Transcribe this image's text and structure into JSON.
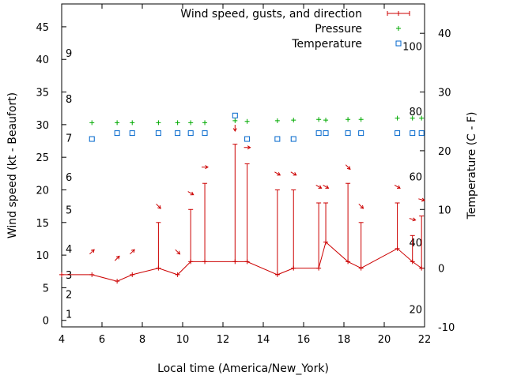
{
  "chart_data": {
    "type": "line",
    "xlabel": "Local time (America/New_York)",
    "ylabel": "Wind speed (kt - Beaufort)",
    "y2label": "Temperature (C - F)",
    "xlim": [
      4,
      22
    ],
    "ylim": [
      -1,
      48.5
    ],
    "y2lim": [
      -10,
      45
    ],
    "x_ticks": [
      4,
      6,
      8,
      10,
      12,
      14,
      16,
      18,
      20,
      22
    ],
    "y_ticks": [
      0,
      5,
      10,
      15,
      20,
      25,
      30,
      35,
      40,
      45
    ],
    "y2_ticks": [
      -10,
      0,
      10,
      20,
      30,
      40
    ],
    "beaufort_labels": [
      {
        "label": "1",
        "y": 1
      },
      {
        "label": "2",
        "y": 4
      },
      {
        "label": "3",
        "y": 7
      },
      {
        "label": "4",
        "y": 11
      },
      {
        "label": "5",
        "y": 17
      },
      {
        "label": "6",
        "y": 22
      },
      {
        "label": "7",
        "y": 28
      },
      {
        "label": "8",
        "y": 34
      },
      {
        "label": "9",
        "y": 41
      }
    ],
    "fahrenheit_labels": [
      {
        "label": "20",
        "y2": -7
      },
      {
        "label": "40",
        "y2": 4.4
      },
      {
        "label": "60",
        "y2": 15.6
      },
      {
        "label": "80",
        "y2": 26.7
      },
      {
        "label": "100",
        "y2": 37.8
      }
    ],
    "legend_position": "top-right",
    "legend": [
      "Wind speed, gusts, and direction",
      "Pressure",
      "Temperature"
    ],
    "colors": {
      "wind": "#cc0000",
      "pressure": "#00aa00",
      "temperature": "#0066cc"
    },
    "series": [
      {
        "name": "Wind speed, gusts, and direction",
        "x": [
          4,
          5.5,
          6.75,
          7.5,
          8.8,
          9.75,
          10.4,
          11.1,
          12.6,
          13.2,
          14.7,
          15.5,
          16.75,
          17.1,
          18.2,
          18.85,
          20.65,
          21.4,
          21.85
        ],
        "values": [
          7,
          7,
          6,
          7,
          8,
          7,
          9,
          9,
          9,
          9,
          7,
          8,
          8,
          12,
          9,
          8,
          11,
          9,
          8
        ],
        "gusts": [
          null,
          null,
          null,
          null,
          15,
          null,
          17,
          21,
          27,
          24,
          20,
          20,
          18,
          18,
          21,
          15,
          18,
          13,
          16
        ],
        "direction_deg": [
          null,
          225,
          225,
          225,
          315,
          315,
          300,
          270,
          0,
          270,
          300,
          300,
          300,
          300,
          315,
          315,
          300,
          285,
          285
        ]
      },
      {
        "name": "Pressure",
        "x": [
          5.5,
          6.75,
          7.5,
          8.8,
          9.75,
          10.4,
          11.1,
          12.6,
          13.2,
          14.7,
          15.5,
          16.75,
          17.1,
          18.2,
          18.85,
          20.65,
          21.4,
          21.85
        ],
        "values": [
          30.3,
          30.3,
          30.3,
          30.3,
          30.3,
          30.3,
          30.3,
          30.6,
          30.5,
          30.6,
          30.7,
          30.8,
          30.7,
          30.8,
          30.8,
          31,
          31,
          31
        ]
      },
      {
        "name": "Temperature",
        "x": [
          5.5,
          6.75,
          7.5,
          8.8,
          9.75,
          10.4,
          11.1,
          12.6,
          13.2,
          14.7,
          15.5,
          16.75,
          17.1,
          18.2,
          18.85,
          20.65,
          21.4,
          21.85
        ],
        "values": [
          22,
          23,
          23,
          23,
          23,
          23,
          23,
          26,
          22,
          22,
          22,
          23,
          23,
          23,
          23,
          23,
          23,
          23
        ]
      }
    ]
  }
}
